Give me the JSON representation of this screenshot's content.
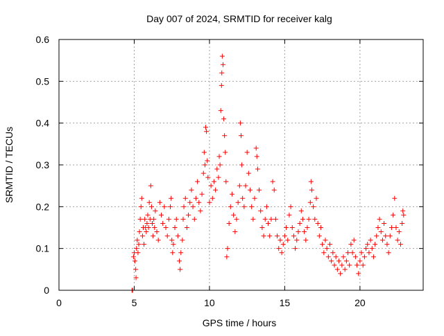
{
  "colors": {
    "series": "#ff0000",
    "grid": "#a0a0a0",
    "axis": "#000000",
    "background": "#ffffff"
  },
  "chart_data": {
    "type": "scatter",
    "title": "Day 007 of 2024, SRMTID for receiver kalg",
    "xlabel": "GPS time / hours",
    "ylabel": "SRMTID / TECUs",
    "xlim": [
      0,
      24.2
    ],
    "ylim": [
      0,
      0.6
    ],
    "xticks": [
      0,
      5,
      10,
      15,
      20
    ],
    "yticks": [
      0,
      0.1,
      0.2,
      0.3,
      0.4,
      0.5,
      0.6
    ],
    "xtick_labels": [
      "0",
      "5",
      "10",
      "15",
      "20"
    ],
    "ytick_labels": [
      "0",
      "0.1",
      "0.2",
      "0.3",
      "0.4",
      "0.5",
      "0.6"
    ],
    "grid": true,
    "marker": "plus",
    "series": [
      {
        "name": "SRMTID",
        "points": [
          [
            4.85,
            0.0
          ],
          [
            4.9,
            0.0
          ],
          [
            4.95,
            0.08
          ],
          [
            5.0,
            0.09
          ],
          [
            5.05,
            0.07
          ],
          [
            5.1,
            0.05
          ],
          [
            5.12,
            0.03
          ],
          [
            5.15,
            0.1
          ],
          [
            5.2,
            0.12
          ],
          [
            5.25,
            0.09
          ],
          [
            5.3,
            0.11
          ],
          [
            5.35,
            0.14
          ],
          [
            5.4,
            0.17
          ],
          [
            5.45,
            0.2
          ],
          [
            5.5,
            0.22
          ],
          [
            5.55,
            0.13
          ],
          [
            5.6,
            0.15
          ],
          [
            5.65,
            0.11
          ],
          [
            5.7,
            0.17
          ],
          [
            5.75,
            0.15
          ],
          [
            5.8,
            0.14
          ],
          [
            5.85,
            0.16
          ],
          [
            5.9,
            0.18
          ],
          [
            5.95,
            0.15
          ],
          [
            6.0,
            0.21
          ],
          [
            6.05,
            0.17
          ],
          [
            6.1,
            0.25
          ],
          [
            6.15,
            0.2
          ],
          [
            6.2,
            0.16
          ],
          [
            6.25,
            0.13
          ],
          [
            6.3,
            0.17
          ],
          [
            6.35,
            0.15
          ],
          [
            6.4,
            0.19
          ],
          [
            6.5,
            0.14
          ],
          [
            6.6,
            0.12
          ],
          [
            6.7,
            0.21
          ],
          [
            6.8,
            0.18
          ],
          [
            6.9,
            0.16
          ],
          [
            7.0,
            0.2
          ],
          [
            7.1,
            0.15
          ],
          [
            7.2,
            0.13
          ],
          [
            7.3,
            0.17
          ],
          [
            7.4,
            0.2
          ],
          [
            7.45,
            0.22
          ],
          [
            7.5,
            0.12
          ],
          [
            7.55,
            0.09
          ],
          [
            7.6,
            0.11
          ],
          [
            7.7,
            0.15
          ],
          [
            7.8,
            0.17
          ],
          [
            7.9,
            0.13
          ],
          [
            8.0,
            0.07
          ],
          [
            8.05,
            0.05
          ],
          [
            8.1,
            0.09
          ],
          [
            8.2,
            0.12
          ],
          [
            8.25,
            0.17
          ],
          [
            8.3,
            0.2
          ],
          [
            8.4,
            0.22
          ],
          [
            8.5,
            0.15
          ],
          [
            8.6,
            0.18
          ],
          [
            8.7,
            0.21
          ],
          [
            8.8,
            0.24
          ],
          [
            8.9,
            0.2
          ],
          [
            9.0,
            0.17
          ],
          [
            9.1,
            0.22
          ],
          [
            9.2,
            0.26
          ],
          [
            9.3,
            0.21
          ],
          [
            9.4,
            0.19
          ],
          [
            9.5,
            0.23
          ],
          [
            9.6,
            0.28
          ],
          [
            9.65,
            0.33
          ],
          [
            9.7,
            0.3
          ],
          [
            9.75,
            0.39
          ],
          [
            9.8,
            0.38
          ],
          [
            9.85,
            0.31
          ],
          [
            9.9,
            0.27
          ],
          [
            10.0,
            0.21
          ],
          [
            10.1,
            0.25
          ],
          [
            10.2,
            0.22
          ],
          [
            10.3,
            0.26
          ],
          [
            10.4,
            0.24
          ],
          [
            10.5,
            0.29
          ],
          [
            10.6,
            0.27
          ],
          [
            10.65,
            0.32
          ],
          [
            10.7,
            0.3
          ],
          [
            10.75,
            0.43
          ],
          [
            10.8,
            0.49
          ],
          [
            10.82,
            0.52
          ],
          [
            10.85,
            0.56
          ],
          [
            10.9,
            0.54
          ],
          [
            10.95,
            0.41
          ],
          [
            11.0,
            0.37
          ],
          [
            11.05,
            0.33
          ],
          [
            11.1,
            0.26
          ],
          [
            11.15,
            0.08
          ],
          [
            11.2,
            0.1
          ],
          [
            11.3,
            0.16
          ],
          [
            11.4,
            0.2
          ],
          [
            11.5,
            0.23
          ],
          [
            11.6,
            0.18
          ],
          [
            11.7,
            0.14
          ],
          [
            11.8,
            0.17
          ],
          [
            11.9,
            0.21
          ],
          [
            12.0,
            0.25
          ],
          [
            12.05,
            0.4
          ],
          [
            12.1,
            0.37
          ],
          [
            12.15,
            0.3
          ],
          [
            12.2,
            0.22
          ],
          [
            12.3,
            0.2
          ],
          [
            12.4,
            0.25
          ],
          [
            12.5,
            0.33
          ],
          [
            12.6,
            0.28
          ],
          [
            12.7,
            0.24
          ],
          [
            12.8,
            0.2
          ],
          [
            12.9,
            0.17
          ],
          [
            13.0,
            0.22
          ],
          [
            13.1,
            0.34
          ],
          [
            13.15,
            0.32
          ],
          [
            13.2,
            0.29
          ],
          [
            13.3,
            0.24
          ],
          [
            13.4,
            0.19
          ],
          [
            13.5,
            0.15
          ],
          [
            13.6,
            0.13
          ],
          [
            13.7,
            0.17
          ],
          [
            13.8,
            0.2
          ],
          [
            13.9,
            0.16
          ],
          [
            14.0,
            0.13
          ],
          [
            14.1,
            0.17
          ],
          [
            14.2,
            0.26
          ],
          [
            14.3,
            0.24
          ],
          [
            14.4,
            0.17
          ],
          [
            14.5,
            0.13
          ],
          [
            14.6,
            0.1
          ],
          [
            14.7,
            0.12
          ],
          [
            14.8,
            0.09
          ],
          [
            14.9,
            0.11
          ],
          [
            15.0,
            0.13
          ],
          [
            15.1,
            0.15
          ],
          [
            15.2,
            0.12
          ],
          [
            15.3,
            0.18
          ],
          [
            15.4,
            0.2
          ],
          [
            15.5,
            0.15
          ],
          [
            15.6,
            0.13
          ],
          [
            15.7,
            0.1
          ],
          [
            15.8,
            0.12
          ],
          [
            15.9,
            0.14
          ],
          [
            16.0,
            0.16
          ],
          [
            16.1,
            0.19
          ],
          [
            16.2,
            0.17
          ],
          [
            16.3,
            0.14
          ],
          [
            16.4,
            0.12
          ],
          [
            16.5,
            0.15
          ],
          [
            16.6,
            0.17
          ],
          [
            16.7,
            0.21
          ],
          [
            16.75,
            0.26
          ],
          [
            16.8,
            0.24
          ],
          [
            16.9,
            0.2
          ],
          [
            17.0,
            0.17
          ],
          [
            17.1,
            0.22
          ],
          [
            17.2,
            0.16
          ],
          [
            17.3,
            0.13
          ],
          [
            17.4,
            0.15
          ],
          [
            17.5,
            0.11
          ],
          [
            17.6,
            0.09
          ],
          [
            17.7,
            0.12
          ],
          [
            17.8,
            0.1
          ],
          [
            17.9,
            0.08
          ],
          [
            18.0,
            0.11
          ],
          [
            18.1,
            0.07
          ],
          [
            18.2,
            0.09
          ],
          [
            18.3,
            0.06
          ],
          [
            18.4,
            0.08
          ],
          [
            18.5,
            0.05
          ],
          [
            18.6,
            0.07
          ],
          [
            18.7,
            0.04
          ],
          [
            18.8,
            0.06
          ],
          [
            18.9,
            0.08
          ],
          [
            19.0,
            0.05
          ],
          [
            19.1,
            0.07
          ],
          [
            19.2,
            0.09
          ],
          [
            19.3,
            0.06
          ],
          [
            19.4,
            0.11
          ],
          [
            19.5,
            0.09
          ],
          [
            19.6,
            0.12
          ],
          [
            19.7,
            0.08
          ],
          [
            19.8,
            0.06
          ],
          [
            19.9,
            0.04
          ],
          [
            20.0,
            0.07
          ],
          [
            20.1,
            0.09
          ],
          [
            20.2,
            0.06
          ],
          [
            20.3,
            0.08
          ],
          [
            20.4,
            0.1
          ],
          [
            20.5,
            0.11
          ],
          [
            20.6,
            0.09
          ],
          [
            20.7,
            0.12
          ],
          [
            20.8,
            0.1
          ],
          [
            20.9,
            0.08
          ],
          [
            21.0,
            0.11
          ],
          [
            21.1,
            0.13
          ],
          [
            21.2,
            0.15
          ],
          [
            21.3,
            0.17
          ],
          [
            21.4,
            0.14
          ],
          [
            21.5,
            0.12
          ],
          [
            21.6,
            0.16
          ],
          [
            21.7,
            0.13
          ],
          [
            21.8,
            0.11
          ],
          [
            21.9,
            0.09
          ],
          [
            22.0,
            0.13
          ],
          [
            22.1,
            0.15
          ],
          [
            22.2,
            0.18
          ],
          [
            22.3,
            0.22
          ],
          [
            22.4,
            0.15
          ],
          [
            22.5,
            0.12
          ],
          [
            22.6,
            0.14
          ],
          [
            22.7,
            0.11
          ],
          [
            22.8,
            0.16
          ],
          [
            22.85,
            0.19
          ],
          [
            22.9,
            0.18
          ]
        ]
      }
    ]
  }
}
